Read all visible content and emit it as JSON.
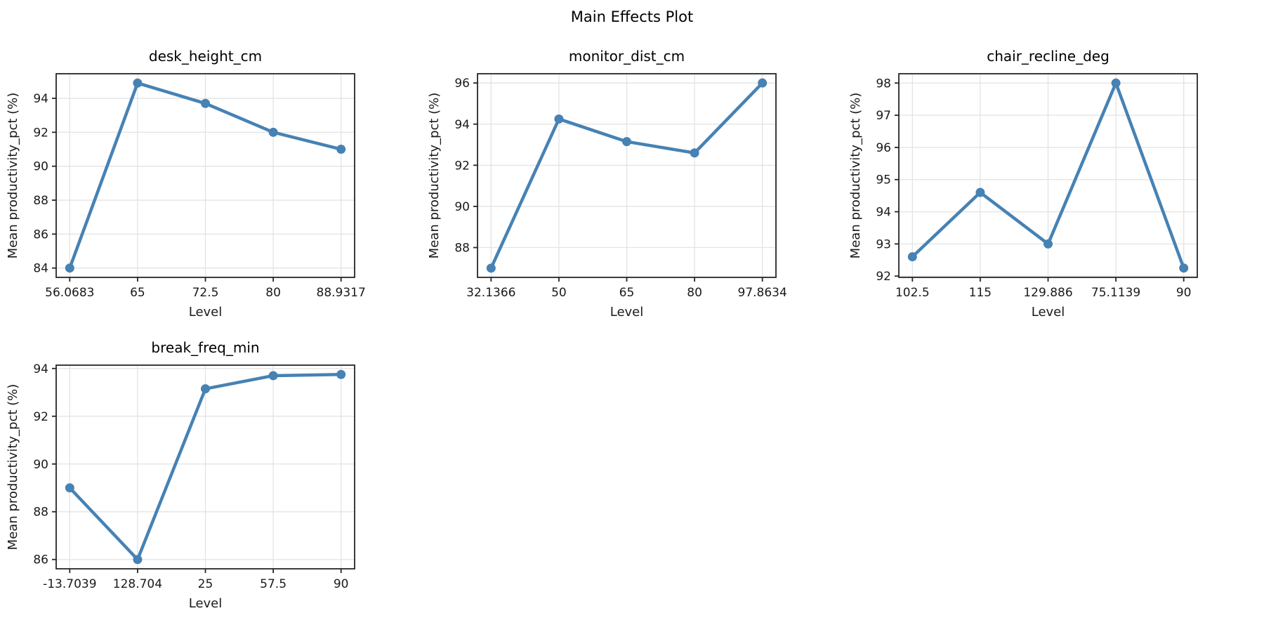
{
  "figure": {
    "title": "Main Effects Plot"
  },
  "colors": {
    "line": "#4682B4",
    "spine": "#262626",
    "grid": "#e3e3e3",
    "text": "#1a1a1a"
  },
  "chart_data": [
    {
      "type": "line",
      "title": "desk_height_cm",
      "categories": [
        "56.0683",
        "65",
        "72.5",
        "80",
        "88.9317"
      ],
      "values": [
        84.0,
        94.9,
        93.7,
        92.0,
        91.0
      ],
      "xlabel": "Level",
      "ylabel": "Mean productivity_pct (%)",
      "yticks": [
        84,
        86,
        88,
        90,
        92,
        94
      ],
      "ylim": [
        83.45,
        95.45
      ],
      "grid": true,
      "legend": false
    },
    {
      "type": "line",
      "title": "monitor_dist_cm",
      "categories": [
        "32.1366",
        "50",
        "65",
        "80",
        "97.8634"
      ],
      "values": [
        87.0,
        94.25,
        93.15,
        92.6,
        96.0
      ],
      "xlabel": "Level",
      "ylabel": "Mean productivity_pct (%)",
      "yticks": [
        88,
        90,
        92,
        94,
        96
      ],
      "ylim": [
        86.55,
        96.45
      ],
      "grid": true,
      "legend": false
    },
    {
      "type": "line",
      "title": "chair_recline_deg",
      "categories": [
        "102.5",
        "115",
        "129.886",
        "75.1139",
        "90"
      ],
      "values": [
        92.6,
        94.6,
        93.0,
        98.0,
        92.25
      ],
      "xlabel": "Level",
      "ylabel": "Mean productivity_pct (%)",
      "yticks": [
        92,
        93,
        94,
        95,
        96,
        97,
        98
      ],
      "ylim": [
        91.96,
        98.29
      ],
      "grid": true,
      "legend": false
    },
    {
      "type": "line",
      "title": "break_freq_min",
      "categories": [
        "-13.7039",
        "128.704",
        "25",
        "57.5",
        "90"
      ],
      "values": [
        89.0,
        86.0,
        93.15,
        93.7,
        93.75
      ],
      "xlabel": "Level",
      "ylabel": "Mean productivity_pct (%)",
      "yticks": [
        86,
        88,
        90,
        92,
        94
      ],
      "ylim": [
        85.61,
        94.14
      ],
      "grid": true,
      "legend": false
    }
  ]
}
